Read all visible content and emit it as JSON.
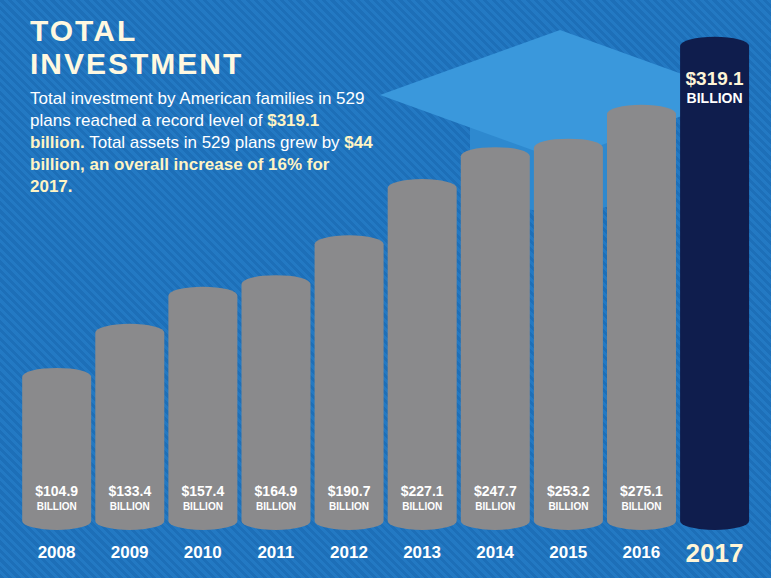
{
  "chart_data": {
    "type": "bar",
    "title": "TOTAL INVESTMENT",
    "subtitle": [
      "Total investment by American families in 529 plans reached a record level of ",
      "$319.1 billion.",
      " Total assets in 529 plans grew by ",
      "$44 billion, an overall increase of 16% for 2017."
    ],
    "categories": [
      "2008",
      "2009",
      "2010",
      "2011",
      "2012",
      "2013",
      "2014",
      "2015",
      "2016",
      "2017"
    ],
    "values": [
      104.9,
      133.4,
      157.4,
      164.9,
      190.7,
      227.1,
      247.7,
      253.2,
      275.1,
      319.1
    ],
    "value_labels": [
      "$104.9 BILLION",
      "$133.4 BILLION",
      "$157.4 BILLION",
      "$164.9 BILLION",
      "$190.7 BILLION",
      "$227.1 BILLION",
      "$247.7 BILLION",
      "$253.2 BILLION",
      "$275.1 BILLION",
      "$319.1 BILLION"
    ],
    "colors": [
      "#8a8a8c",
      "#8a8a8c",
      "#8a8a8c",
      "#8a8a8c",
      "#8a8a8c",
      "#8a8a8c",
      "#8a8a8c",
      "#8a8a8c",
      "#8a8a8c",
      "#0f1d4d"
    ],
    "ylim": [
      0,
      330
    ],
    "data_labels": true,
    "tick_labels": "x",
    "grid": false
  }
}
